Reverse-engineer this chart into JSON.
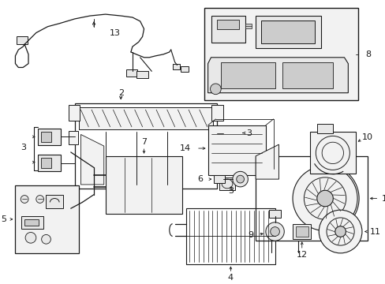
{
  "background_color": "#ffffff",
  "line_color": "#1a1a1a",
  "gray_fill": "#e8e8e8",
  "light_gray": "#f2f2f2",
  "mid_gray": "#cccccc"
}
